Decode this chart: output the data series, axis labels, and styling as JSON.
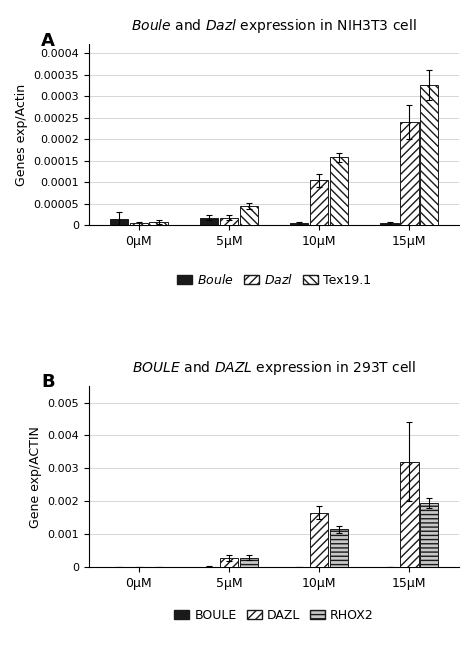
{
  "panel_A": {
    "title": "$\\mathit{Boule}$ and $\\mathit{Dazl}$ expression in NIH3T3 cell",
    "ylabel": "Genes exp/Actin",
    "categories": [
      "0μM",
      "5μM",
      "10μM",
      "15μM"
    ],
    "series": {
      "Boule": [
        1.5e-05,
        1.8e-05,
        5e-06,
        5e-06
      ],
      "Dazl": [
        5e-06,
        1.8e-05,
        0.000105,
        0.00024
      ],
      "Tex19.1": [
        8e-06,
        4.5e-05,
        0.000158,
        0.000325
      ]
    },
    "errors": {
      "Boule": [
        1.5e-05,
        5e-06,
        3e-06,
        3e-06
      ],
      "Dazl": [
        3e-06,
        5e-06,
        1.5e-05,
        4e-05
      ],
      "Tex19.1": [
        5e-06,
        8e-06,
        1e-05,
        3.5e-05
      ]
    },
    "ylim": [
      0,
      0.00042
    ],
    "yticks": [
      0,
      5e-05,
      0.0001,
      0.00015,
      0.0002,
      0.00025,
      0.0003,
      0.00035,
      0.0004
    ],
    "ytick_labels": [
      "0",
      "0.00005",
      "0.0001",
      "0.00015",
      "0.0002",
      "0.00025",
      "0.0003",
      "0.00035",
      "0.0004"
    ],
    "legend_labels": [
      "Boule",
      "Dazl",
      "Tex19.1"
    ],
    "panel_label": "A"
  },
  "panel_B": {
    "title": "$\\mathit{BOULE}$ and $\\mathit{DAZL}$ expression in 293T cell",
    "ylabel": "Gene exp/ACTIN",
    "categories": [
      "0μM",
      "5μM",
      "10μM",
      "15μM"
    ],
    "series": {
      "BOULE": [
        0.0,
        1.5e-05,
        1e-05,
        0.0
      ],
      "DAZL": [
        0.0,
        0.00028,
        0.00165,
        0.0032
      ],
      "RHOX2": [
        0.0,
        0.00028,
        0.00115,
        0.00195
      ]
    },
    "errors": {
      "BOULE": [
        0.0,
        1e-05,
        5e-06,
        0.0
      ],
      "DAZL": [
        0.0,
        0.0001,
        0.0002,
        0.0012
      ],
      "RHOX2": [
        0.0,
        8e-05,
        0.0001,
        0.00015
      ]
    },
    "ylim": [
      0,
      0.0055
    ],
    "yticks": [
      0,
      0.001,
      0.002,
      0.003,
      0.004,
      0.005
    ],
    "ytick_labels": [
      "0",
      "0.001",
      "0.002",
      "0.003",
      "0.004",
      "0.005"
    ],
    "legend_labels": [
      "BOULE",
      "DAZL",
      "RHOX2"
    ],
    "panel_label": "B"
  },
  "styles_A": [
    {
      "facecolor": "#1a1a1a",
      "hatch": null,
      "edgecolor": "#1a1a1a"
    },
    {
      "facecolor": "#ffffff",
      "hatch": "////",
      "edgecolor": "#1a1a1a"
    },
    {
      "facecolor": "#ffffff",
      "hatch": "\\\\\\\\",
      "edgecolor": "#1a1a1a"
    }
  ],
  "styles_B": [
    {
      "facecolor": "#1a1a1a",
      "hatch": null,
      "edgecolor": "#1a1a1a"
    },
    {
      "facecolor": "#ffffff",
      "hatch": "////",
      "edgecolor": "#1a1a1a"
    },
    {
      "facecolor": "#c8c8c8",
      "hatch": "----",
      "edgecolor": "#1a1a1a"
    }
  ],
  "bar_width": 0.22,
  "background": "#ffffff",
  "grid_color": "#d0d0d0",
  "title_fontsize": 10,
  "axis_fontsize": 9,
  "tick_fontsize": 8,
  "panel_label_fontsize": 13,
  "legend_fontsize": 9
}
